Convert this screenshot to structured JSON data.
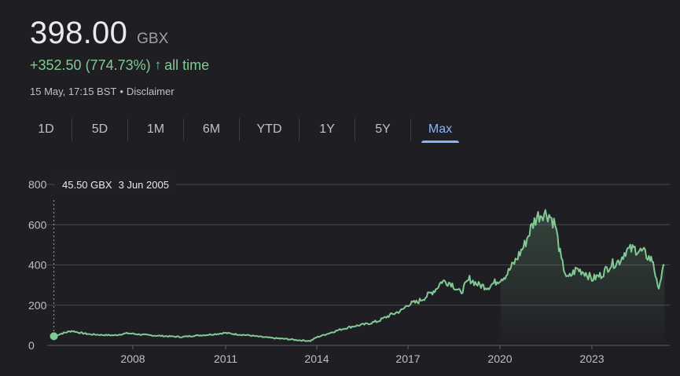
{
  "header": {
    "price": "398.00",
    "currency": "GBX",
    "change": "+352.50 (774.73%)",
    "change_arrow": "↑",
    "change_period": "all time",
    "timestamp": "15 May, 17:15 BST",
    "separator": "•",
    "disclaimer": "Disclaimer"
  },
  "tabs": [
    {
      "label": "1D",
      "active": false
    },
    {
      "label": "5D",
      "active": false
    },
    {
      "label": "1M",
      "active": false
    },
    {
      "label": "6M",
      "active": false
    },
    {
      "label": "YTD",
      "active": false
    },
    {
      "label": "1Y",
      "active": false
    },
    {
      "label": "5Y",
      "active": false
    },
    {
      "label": "Max",
      "active": true
    }
  ],
  "tooltip": {
    "value": "45.50 GBX",
    "date": "3 Jun 2005"
  },
  "colors": {
    "background": "#1f1f23",
    "line": "#81c995",
    "accent": "#8ab4f8",
    "grid": "#5f6368",
    "text": "#e8eaed",
    "muted": "#9aa0a6"
  },
  "chart_data": {
    "type": "line",
    "ylim": [
      0,
      800
    ],
    "yticks": [
      0,
      200,
      400,
      600,
      800
    ],
    "xticks": [
      "2008",
      "2011",
      "2014",
      "2017",
      "2020",
      "2023"
    ],
    "series": [
      {
        "x": [
          2005.42,
          2005.7,
          2006.0,
          2006.3,
          2006.6,
          2007.0,
          2007.4,
          2007.8,
          2008.0,
          2008.4,
          2008.8,
          2009.2,
          2009.6,
          2010.0,
          2010.4,
          2010.8,
          2011.0,
          2011.4,
          2011.8,
          2012.2,
          2012.6,
          2013.0,
          2013.4,
          2013.8,
          2014.0,
          2014.4,
          2014.8,
          2015.2,
          2015.6,
          2016.0,
          2016.4,
          2016.8,
          2017.0,
          2017.3,
          2017.6,
          2017.9,
          2018.1,
          2018.4,
          2018.7,
          2019.0,
          2019.3,
          2019.6,
          2019.9,
          2020.2,
          2020.5,
          2020.8,
          2021.0,
          2021.2,
          2021.4,
          2021.6,
          2021.8,
          2022.0,
          2022.2,
          2022.5,
          2022.8,
          2023.0,
          2023.3,
          2023.6,
          2023.9,
          2024.1,
          2024.4,
          2024.7,
          2024.9,
          2025.0,
          2025.15,
          2025.37
        ],
        "y": [
          45.5,
          60,
          72,
          62,
          55,
          52,
          50,
          60,
          58,
          52,
          48,
          45,
          42,
          48,
          52,
          58,
          62,
          55,
          50,
          42,
          36,
          32,
          26,
          22,
          40,
          60,
          80,
          95,
          105,
          120,
          150,
          175,
          205,
          215,
          245,
          280,
          320,
          310,
          260,
          330,
          300,
          290,
          320,
          350,
          420,
          500,
          580,
          640,
          660,
          650,
          600,
          420,
          330,
          380,
          360,
          330,
          350,
          400,
          420,
          470,
          480,
          460,
          430,
          420,
          280,
          398
        ]
      }
    ]
  }
}
